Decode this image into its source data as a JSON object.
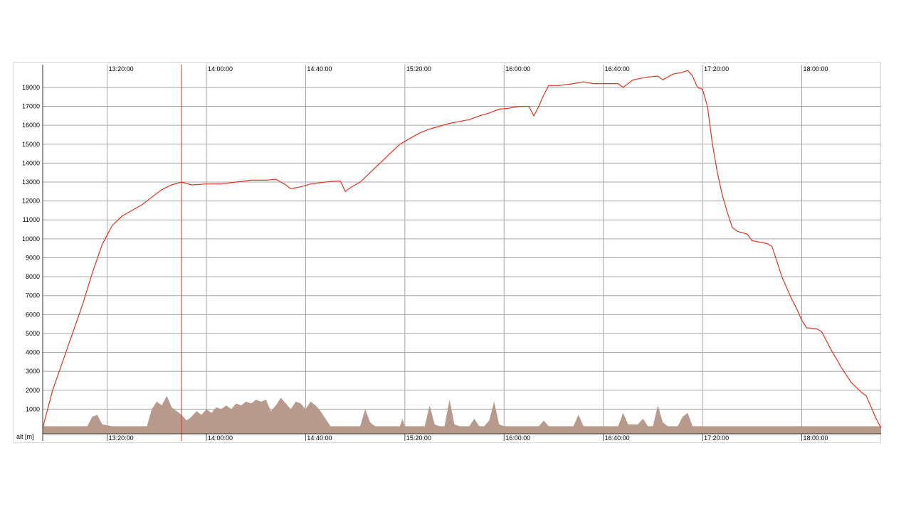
{
  "chart_data": {
    "type": "line",
    "title": "",
    "xlabel": "",
    "ylabel": "alt [m]",
    "grid": true,
    "x_ticks": [
      "13:20:00",
      "14:00:00",
      "14:40:00",
      "15:20:00",
      "16:00:00",
      "16:40:00",
      "17:20:00",
      "18:00:00"
    ],
    "y_ticks": [
      1000,
      2000,
      3000,
      4000,
      5000,
      6000,
      7000,
      8000,
      9000,
      10000,
      11000,
      12000,
      13000,
      14000,
      15000,
      16000,
      17000,
      18000
    ],
    "xlim": [
      "12:54:00",
      "18:32:00"
    ],
    "ylim": [
      -300,
      19200
    ],
    "cursor_time": "13:50:00",
    "colors": {
      "altitude": "#e8321e",
      "background_area": "#b89a8c",
      "grid": "#a6a6a6",
      "cursor": "#e8321e"
    },
    "series": [
      {
        "values_key": "altitude",
        "points": [
          [
            "12:54:00",
            0
          ],
          [
            "12:58:00",
            2000
          ],
          [
            "13:02:00",
            3500
          ],
          [
            "13:06:00",
            5000
          ],
          [
            "13:10:00",
            6500
          ],
          [
            "13:14:00",
            8200
          ],
          [
            "13:18:00",
            9700
          ],
          [
            "13:22:00",
            10700
          ],
          [
            "13:26:00",
            11200
          ],
          [
            "13:30:00",
            11500
          ],
          [
            "13:34:00",
            11800
          ],
          [
            "13:38:00",
            12200
          ],
          [
            "13:42:00",
            12600
          ],
          [
            "13:46:00",
            12850
          ],
          [
            "13:50:00",
            13000
          ],
          [
            "13:54:00",
            12850
          ],
          [
            "14:00:00",
            12900
          ],
          [
            "14:06:00",
            12900
          ],
          [
            "14:12:00",
            13000
          ],
          [
            "14:18:00",
            13100
          ],
          [
            "14:24:00",
            13100
          ],
          [
            "14:28:00",
            13150
          ],
          [
            "14:32:00",
            12850
          ],
          [
            "14:34:00",
            12650
          ],
          [
            "14:38:00",
            12750
          ],
          [
            "14:42:00",
            12900
          ],
          [
            "14:48:00",
            13000
          ],
          [
            "14:52:00",
            13050
          ],
          [
            "14:54:00",
            13050
          ],
          [
            "14:56:00",
            12500
          ],
          [
            "14:58:00",
            12700
          ],
          [
            "15:02:00",
            13000
          ],
          [
            "15:06:00",
            13500
          ],
          [
            "15:10:00",
            14000
          ],
          [
            "15:14:00",
            14500
          ],
          [
            "15:18:00",
            15000
          ],
          [
            "15:22:00",
            15300
          ],
          [
            "15:26:00",
            15600
          ],
          [
            "15:30:00",
            15800
          ],
          [
            "15:34:00",
            15950
          ],
          [
            "15:38:00",
            16100
          ],
          [
            "15:42:00",
            16200
          ],
          [
            "15:46:00",
            16300
          ],
          [
            "15:50:00",
            16500
          ],
          [
            "15:54:00",
            16650
          ],
          [
            "15:58:00",
            16850
          ],
          [
            "16:02:00",
            16900
          ],
          [
            "16:06:00",
            17000
          ],
          [
            "16:10:00",
            17000
          ],
          [
            "16:12:00",
            16500
          ],
          [
            "16:14:00",
            17000
          ],
          [
            "16:16:00",
            17600
          ],
          [
            "16:18:00",
            18100
          ],
          [
            "16:22:00",
            18100
          ],
          [
            "16:28:00",
            18200
          ],
          [
            "16:32:00",
            18300
          ],
          [
            "16:36:00",
            18200
          ],
          [
            "16:40:00",
            18200
          ],
          [
            "16:46:00",
            18200
          ],
          [
            "16:48:00",
            18000
          ],
          [
            "16:52:00",
            18400
          ],
          [
            "16:58:00",
            18550
          ],
          [
            "17:02:00",
            18600
          ],
          [
            "17:04:00",
            18400
          ],
          [
            "17:08:00",
            18700
          ],
          [
            "17:12:00",
            18800
          ],
          [
            "17:14:00",
            18900
          ],
          [
            "17:16:00",
            18600
          ],
          [
            "17:18:00",
            18000
          ],
          [
            "17:20:00",
            17900
          ],
          [
            "17:22:00",
            17000
          ],
          [
            "17:24:00",
            15000
          ],
          [
            "17:26:00",
            13500
          ],
          [
            "17:28:00",
            12300
          ],
          [
            "17:30:00",
            11400
          ],
          [
            "17:32:00",
            10600
          ],
          [
            "17:34:00",
            10400
          ],
          [
            "17:38:00",
            10250
          ],
          [
            "17:40:00",
            9900
          ],
          [
            "17:46:00",
            9750
          ],
          [
            "17:48:00",
            9600
          ],
          [
            "17:52:00",
            8000
          ],
          [
            "17:56:00",
            6800
          ],
          [
            "17:58:00",
            6300
          ],
          [
            "18:00:00",
            5700
          ],
          [
            "18:02:00",
            5300
          ],
          [
            "18:06:00",
            5250
          ],
          [
            "18:08:00",
            5100
          ],
          [
            "18:12:00",
            4100
          ],
          [
            "18:16:00",
            3200
          ],
          [
            "18:20:00",
            2400
          ],
          [
            "18:24:00",
            1900
          ],
          [
            "18:26:00",
            1700
          ],
          [
            "18:28:00",
            1100
          ],
          [
            "18:30:00",
            500
          ],
          [
            "18:32:00",
            0
          ]
        ]
      },
      {
        "values_key": "background_area",
        "points": [
          [
            "12:54:00",
            100
          ],
          [
            "13:05:00",
            100
          ],
          [
            "13:12:00",
            100
          ],
          [
            "13:14:00",
            600
          ],
          [
            "13:16:00",
            700
          ],
          [
            "13:18:00",
            200
          ],
          [
            "13:22:00",
            100
          ],
          [
            "13:36:00",
            100
          ],
          [
            "13:38:00",
            1000
          ],
          [
            "13:40:00",
            1400
          ],
          [
            "13:42:00",
            1200
          ],
          [
            "13:44:00",
            1700
          ],
          [
            "13:46:00",
            1100
          ],
          [
            "13:48:00",
            900
          ],
          [
            "13:50:00",
            700
          ],
          [
            "13:52:00",
            400
          ],
          [
            "13:54:00",
            600
          ],
          [
            "13:56:00",
            900
          ],
          [
            "13:58:00",
            700
          ],
          [
            "14:00:00",
            1000
          ],
          [
            "14:02:00",
            800
          ],
          [
            "14:04:00",
            1100
          ],
          [
            "14:06:00",
            1000
          ],
          [
            "14:08:00",
            1200
          ],
          [
            "14:10:00",
            1000
          ],
          [
            "14:12:00",
            1300
          ],
          [
            "14:14:00",
            1200
          ],
          [
            "14:16:00",
            1400
          ],
          [
            "14:18:00",
            1300
          ],
          [
            "14:20:00",
            1500
          ],
          [
            "14:22:00",
            1400
          ],
          [
            "14:24:00",
            1500
          ],
          [
            "14:26:00",
            900
          ],
          [
            "14:28:00",
            1200
          ],
          [
            "14:30:00",
            1600
          ],
          [
            "14:32:00",
            1300
          ],
          [
            "14:34:00",
            1000
          ],
          [
            "14:36:00",
            1400
          ],
          [
            "14:38:00",
            1300
          ],
          [
            "14:40:00",
            1000
          ],
          [
            "14:42:00",
            1400
          ],
          [
            "14:44:00",
            1200
          ],
          [
            "14:46:00",
            900
          ],
          [
            "14:48:00",
            500
          ],
          [
            "14:50:00",
            100
          ],
          [
            "15:02:00",
            100
          ],
          [
            "15:04:00",
            1000
          ],
          [
            "15:06:00",
            300
          ],
          [
            "15:08:00",
            100
          ],
          [
            "15:18:00",
            100
          ],
          [
            "15:19:00",
            500
          ],
          [
            "15:20:00",
            100
          ],
          [
            "15:28:00",
            100
          ],
          [
            "15:30:00",
            1200
          ],
          [
            "15:32:00",
            200
          ],
          [
            "15:34:00",
            100
          ],
          [
            "15:36:00",
            100
          ],
          [
            "15:38:00",
            1500
          ],
          [
            "15:40:00",
            200
          ],
          [
            "15:42:00",
            100
          ],
          [
            "15:46:00",
            100
          ],
          [
            "15:48:00",
            500
          ],
          [
            "15:50:00",
            100
          ],
          [
            "15:52:00",
            100
          ],
          [
            "15:54:00",
            400
          ],
          [
            "15:56:00",
            1400
          ],
          [
            "15:58:00",
            200
          ],
          [
            "16:00:00",
            100
          ],
          [
            "16:14:00",
            100
          ],
          [
            "16:16:00",
            400
          ],
          [
            "16:18:00",
            100
          ],
          [
            "16:28:00",
            100
          ],
          [
            "16:30:00",
            700
          ],
          [
            "16:32:00",
            100
          ],
          [
            "16:40:00",
            100
          ],
          [
            "16:46:00",
            100
          ],
          [
            "16:48:00",
            800
          ],
          [
            "16:50:00",
            200
          ],
          [
            "16:54:00",
            200
          ],
          [
            "16:56:00",
            500
          ],
          [
            "16:58:00",
            100
          ],
          [
            "17:00:00",
            100
          ],
          [
            "17:02:00",
            1200
          ],
          [
            "17:04:00",
            300
          ],
          [
            "17:06:00",
            100
          ],
          [
            "17:10:00",
            100
          ],
          [
            "17:12:00",
            600
          ],
          [
            "17:14:00",
            800
          ],
          [
            "17:16:00",
            100
          ],
          [
            "18:32:00",
            100
          ]
        ]
      }
    ]
  }
}
